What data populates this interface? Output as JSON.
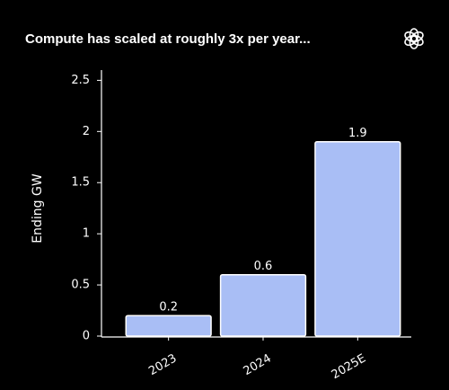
{
  "chart_data": {
    "type": "bar",
    "title": "Compute has scaled at roughly 3x per year...",
    "y_label": "Ending GW",
    "categories": [
      "2023",
      "2024",
      "2025E"
    ],
    "values": [
      0.2,
      0.6,
      1.9
    ],
    "color": "#a9bef5",
    "ylim": [
      0,
      2.6
    ],
    "yticks": [
      0,
      0.5,
      1,
      1.5,
      2,
      2.5
    ],
    "grid": false
  }
}
